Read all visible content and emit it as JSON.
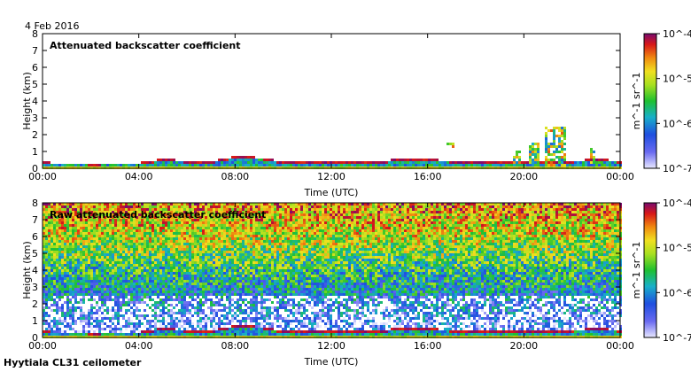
{
  "date_label": "4 Feb 2016",
  "footer_label": "Hyytiala CL31 ceilometer",
  "chart_data": [
    {
      "type": "heatmap",
      "title": "Attenuated backscatter coefficient",
      "xlabel": "Time (UTC)",
      "ylabel": "Height (km)",
      "x_ticks": [
        "00:00",
        "04:00",
        "08:00",
        "12:00",
        "16:00",
        "20:00",
        "00:00"
      ],
      "x_range_hours": [
        0,
        24
      ],
      "y_ticks": [
        0,
        1,
        2,
        3,
        4,
        5,
        6,
        7,
        8
      ],
      "ylim": [
        0,
        8
      ],
      "color_scale": "log",
      "colorbar_ticks": [
        "10^-4",
        "10^-5",
        "10^-6",
        "10^-7"
      ],
      "colorbar_exponents": [
        -4,
        -5,
        -6,
        -7
      ],
      "colorbar_label": "m^-1 sr^-1",
      "colorbar_range": [
        1e-07,
        0.0001
      ],
      "boundary_layer_top_km": [
        [
          0,
          0.35
        ],
        [
          2,
          0.3
        ],
        [
          4,
          0.32
        ],
        [
          5,
          0.55
        ],
        [
          6,
          0.45
        ],
        [
          7,
          0.4
        ],
        [
          8,
          0.7
        ],
        [
          9,
          0.65
        ],
        [
          10,
          0.4
        ],
        [
          12,
          0.35
        ],
        [
          14,
          0.4
        ],
        [
          15,
          0.6
        ],
        [
          16,
          0.55
        ],
        [
          17,
          0.45
        ],
        [
          18,
          0.4
        ],
        [
          19,
          0.35
        ],
        [
          20,
          0.45
        ],
        [
          21,
          0.4
        ],
        [
          22,
          0.45
        ],
        [
          23,
          0.55
        ],
        [
          24,
          0.45
        ]
      ],
      "cloud_features": [
        {
          "start_h": 16.9,
          "end_h": 17.0,
          "base_km": 1.2,
          "top_km": 1.5
        },
        {
          "start_h": 19.7,
          "end_h": 19.8,
          "base_km": 0.2,
          "top_km": 1.0
        },
        {
          "start_h": 20.3,
          "end_h": 20.5,
          "base_km": 0.2,
          "top_km": 1.6
        },
        {
          "start_h": 21.0,
          "end_h": 21.6,
          "base_km": 0.1,
          "top_km": 2.5
        },
        {
          "start_h": 22.8,
          "end_h": 22.9,
          "base_km": 0.2,
          "top_km": 1.2
        }
      ]
    },
    {
      "type": "heatmap",
      "title": "Raw attenuated backscatter coefficient",
      "xlabel": "Time (UTC)",
      "ylabel": "Height (km)",
      "x_ticks": [
        "00:00",
        "04:00",
        "08:00",
        "12:00",
        "16:00",
        "20:00",
        "00:00"
      ],
      "x_range_hours": [
        0,
        24
      ],
      "y_ticks": [
        0,
        1,
        2,
        3,
        4,
        5,
        6,
        7,
        8
      ],
      "ylim": [
        0,
        8
      ],
      "color_scale": "log",
      "colorbar_ticks": [
        "10^-4",
        "10^-5",
        "10^-6",
        "10^-7"
      ],
      "colorbar_exponents": [
        -4,
        -5,
        -6,
        -7
      ],
      "colorbar_label": "m^-1 sr^-1",
      "colorbar_range": [
        1e-07,
        0.0001
      ],
      "noise_log10_by_height": [
        [
          0,
          -6.6
        ],
        [
          1,
          -6.4
        ],
        [
          2,
          -6.2
        ],
        [
          3,
          -5.9
        ],
        [
          4,
          -5.6
        ],
        [
          5,
          -5.3
        ],
        [
          6,
          -5.0
        ],
        [
          7,
          -4.8
        ],
        [
          8,
          -4.6
        ]
      ],
      "boundary_layer_top_km": [
        [
          0,
          0.35
        ],
        [
          2,
          0.3
        ],
        [
          4,
          0.32
        ],
        [
          5,
          0.55
        ],
        [
          6,
          0.45
        ],
        [
          7,
          0.4
        ],
        [
          8,
          0.7
        ],
        [
          9,
          0.65
        ],
        [
          10,
          0.4
        ],
        [
          12,
          0.35
        ],
        [
          14,
          0.4
        ],
        [
          15,
          0.6
        ],
        [
          16,
          0.55
        ],
        [
          17,
          0.45
        ],
        [
          18,
          0.4
        ],
        [
          19,
          0.35
        ],
        [
          20,
          0.45
        ],
        [
          21,
          0.4
        ],
        [
          22,
          0.45
        ],
        [
          23,
          0.55
        ],
        [
          24,
          0.45
        ]
      ]
    }
  ]
}
